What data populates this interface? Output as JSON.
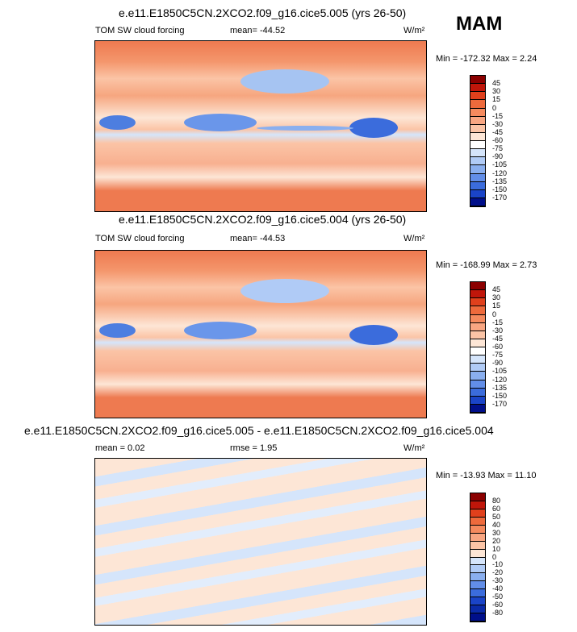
{
  "season": "MAM",
  "panels": [
    {
      "title": "e.e11.E1850C5CN.2XCO2.f09_g16.cice5.005 (yrs 26-50)",
      "variable": "TOM SW cloud forcing",
      "mean": "mean= -44.52",
      "units": "W/m²",
      "minmax": "Min = -172.32 Max =  2.24",
      "colorbar": {
        "labels": [
          45,
          30,
          15,
          0,
          -15,
          -30,
          -45,
          -60,
          -75,
          -90,
          -105,
          -120,
          -135,
          -150,
          -170
        ],
        "colors": [
          "#8b0000",
          "#c0160a",
          "#e0401c",
          "#ee6a3c",
          "#f58a5e",
          "#f8a682",
          "#fbc4a6",
          "#fde6d6",
          "#ffffff",
          "#d5e5fb",
          "#b0cbf6",
          "#8aafef",
          "#628ee8",
          "#3b6cdc",
          "#1a44c8",
          "#000f8a"
        ]
      }
    },
    {
      "title": "e.e11.E1850C5CN.2XCO2.f09_g16.cice5.004 (yrs 26-50)",
      "variable": "TOM SW cloud forcing",
      "mean": "mean= -44.53",
      "units": "W/m²",
      "minmax": "Min = -168.99 Max =  2.73",
      "colorbar": {
        "labels": [
          45,
          30,
          15,
          0,
          -15,
          -30,
          -45,
          -60,
          -75,
          -90,
          -105,
          -120,
          -135,
          -150,
          -170
        ],
        "colors": [
          "#8b0000",
          "#c0160a",
          "#e0401c",
          "#ee6a3c",
          "#f58a5e",
          "#f8a682",
          "#fbc4a6",
          "#fde6d6",
          "#ffffff",
          "#d5e5fb",
          "#b0cbf6",
          "#8aafef",
          "#628ee8",
          "#3b6cdc",
          "#1a44c8",
          "#000f8a"
        ]
      }
    },
    {
      "title": "e.e11.E1850C5CN.2XCO2.f09_g16.cice5.005 - e.e11.E1850C5CN.2XCO2.f09_g16.cice5.004",
      "mean": "mean =  0.02",
      "rmse": "rmse =  1.95",
      "units": "W/m²",
      "minmax": "Min = -13.93 Max =  11.10",
      "colorbar": {
        "labels": [
          80,
          60,
          50,
          40,
          30,
          20,
          10,
          0,
          -10,
          -20,
          -30,
          -40,
          -50,
          -60,
          -80
        ],
        "colors": [
          "#8b0000",
          "#c0160a",
          "#e0401c",
          "#ee6a3c",
          "#f58a5e",
          "#f8a682",
          "#fbc4a6",
          "#fde6d6",
          "#d5e5fb",
          "#b0cbf6",
          "#8aafef",
          "#628ee8",
          "#3b6cdc",
          "#1a44c8",
          "#0a2aa8",
          "#000f8a"
        ]
      }
    }
  ]
}
